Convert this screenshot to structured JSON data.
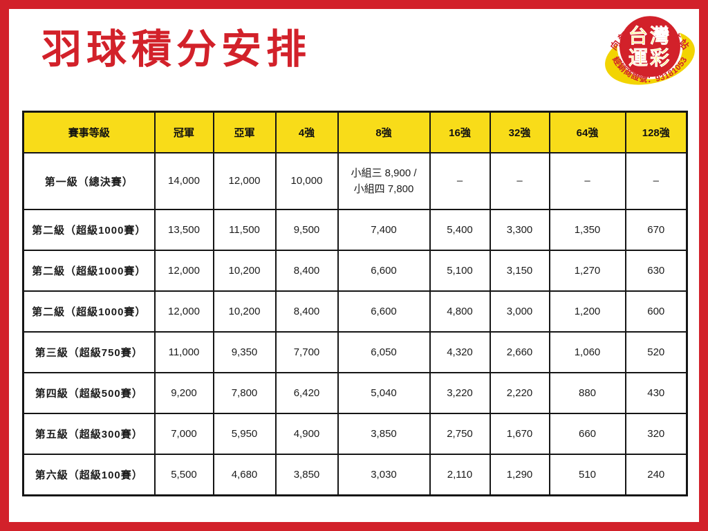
{
  "page": {
    "title": "羽球積分安排",
    "accent_red": "#d2212a",
    "header_yellow": "#f8dc19",
    "line_black": "#151515"
  },
  "logo": {
    "top_arc": "向新力彩券投注站",
    "center_line1": "台灣",
    "center_line2": "運彩",
    "bottom_arc": "經銷商證號：93181053",
    "circle_red": "#d2212a",
    "band_yellow": "#f2d402",
    "text_yellow": "#f8d800"
  },
  "table": {
    "headers": [
      "賽事等級",
      "冠軍",
      "亞軍",
      "4強",
      "8強",
      "16強",
      "32強",
      "64強",
      "128強"
    ],
    "rows": [
      {
        "level": "第一級（總決賽）",
        "values": [
          "14,000",
          "12,000",
          "10,000",
          "小組三 8,900 /\n小組四 7,800",
          "–",
          "–",
          "–",
          "–"
        ]
      },
      {
        "level": "第二級（超級1000賽）",
        "values": [
          "13,500",
          "11,500",
          "9,500",
          "7,400",
          "5,400",
          "3,300",
          "1,350",
          "670"
        ]
      },
      {
        "level": "第二級（超級1000賽）",
        "values": [
          "12,000",
          "10,200",
          "8,400",
          "6,600",
          "5,100",
          "3,150",
          "1,270",
          "630"
        ]
      },
      {
        "level": "第二級（超級1000賽）",
        "values": [
          "12,000",
          "10,200",
          "8,400",
          "6,600",
          "4,800",
          "3,000",
          "1,200",
          "600"
        ]
      },
      {
        "level": "第三級（超級750賽）",
        "values": [
          "11,000",
          "9,350",
          "7,700",
          "6,050",
          "4,320",
          "2,660",
          "1,060",
          "520"
        ]
      },
      {
        "level": "第四級（超級500賽）",
        "values": [
          "9,200",
          "7,800",
          "6,420",
          "5,040",
          "3,220",
          "2,220",
          "880",
          "430"
        ]
      },
      {
        "level": "第五級（超級300賽）",
        "values": [
          "7,000",
          "5,950",
          "4,900",
          "3,850",
          "2,750",
          "1,670",
          "660",
          "320"
        ]
      },
      {
        "level": "第六級（超級100賽）",
        "values": [
          "5,500",
          "4,680",
          "3,850",
          "3,030",
          "2,110",
          "1,290",
          "510",
          "240"
        ]
      }
    ]
  }
}
